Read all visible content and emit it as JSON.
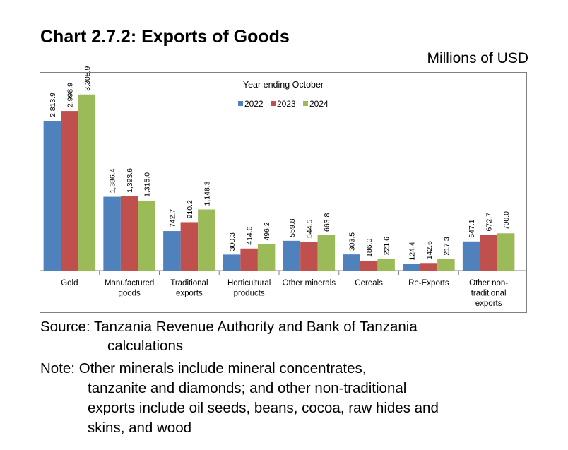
{
  "title": "Chart 2.7.2: Exports of Goods",
  "units": "Millions of USD",
  "source_line1": "Source: Tanzania Revenue Authority and Bank of Tanzania",
  "source_line2": "calculations",
  "note_line1": "Note: Other minerals include mineral concentrates,",
  "note_line2": "tanzanite and diamonds; and other non-traditional",
  "note_line3": "exports include oil seeds, beans, cocoa, raw hides and",
  "note_line4": "skins, and wood",
  "chart_data": {
    "type": "bar",
    "title": "Year ending October",
    "categories": [
      [
        "Gold"
      ],
      [
        "Manufactured",
        "goods"
      ],
      [
        "Traditional",
        "exports"
      ],
      [
        "Horticultural",
        "products"
      ],
      [
        "Other minerals"
      ],
      [
        "Cereals"
      ],
      [
        "Re-Exports"
      ],
      [
        "Other non-",
        "traditional",
        "exports"
      ]
    ],
    "series": [
      {
        "name": "2022",
        "color": "#4F81BD",
        "values": [
          2813.9,
          1386.4,
          742.7,
          300.3,
          559.8,
          303.5,
          124.4,
          547.1
        ],
        "labels": [
          "2,813.9",
          "1,386.4",
          "742.7",
          "300.3",
          "559.8",
          "303.5",
          "124.4",
          "547.1"
        ]
      },
      {
        "name": "2023",
        "color": "#C0504D",
        "values": [
          2998.9,
          1393.6,
          910.2,
          414.6,
          544.5,
          186.0,
          142.6,
          672.7
        ],
        "labels": [
          "2,998.9",
          "1,393.6",
          "910.2",
          "414.6",
          "544.5",
          "186.0",
          "142.6",
          "672.7"
        ]
      },
      {
        "name": "2024",
        "color": "#9BBB59",
        "values": [
          3308.9,
          1315.0,
          1148.3,
          496.2,
          663.8,
          221.6,
          217.3,
          700.0
        ],
        "labels": [
          "3,308.9",
          "1,315.0",
          "1,148.3",
          "496.2",
          "663.8",
          "221.6",
          "217.3",
          "700.0"
        ]
      }
    ],
    "ylim": [
      0,
      3400
    ],
    "legend_position": "top-center",
    "grid": false
  }
}
